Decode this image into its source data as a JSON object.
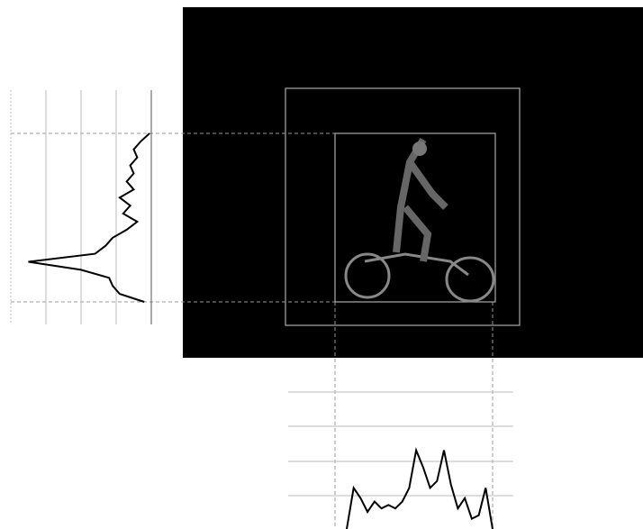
{
  "vertical_profile": {
    "values": [
      0.05,
      0.3,
      0.5,
      0.4,
      0.6,
      0.5,
      0.7,
      0.5,
      0.9,
      0.6,
      0.8,
      0.4,
      0.7,
      1.1,
      1.3,
      1.6,
      3.5,
      2.0,
      1.2,
      1.1,
      0.9,
      0.2
    ]
  },
  "horizontal_profile": {
    "values": [
      0,
      1.2,
      0.9,
      0.5,
      0.8,
      0.6,
      0.7,
      0.6,
      0.8,
      1.2,
      2.3,
      1.8,
      1.2,
      1.4,
      2.3,
      1.3,
      0.6,
      0.9,
      0.3,
      0.4,
      1.2,
      0
    ]
  }
}
